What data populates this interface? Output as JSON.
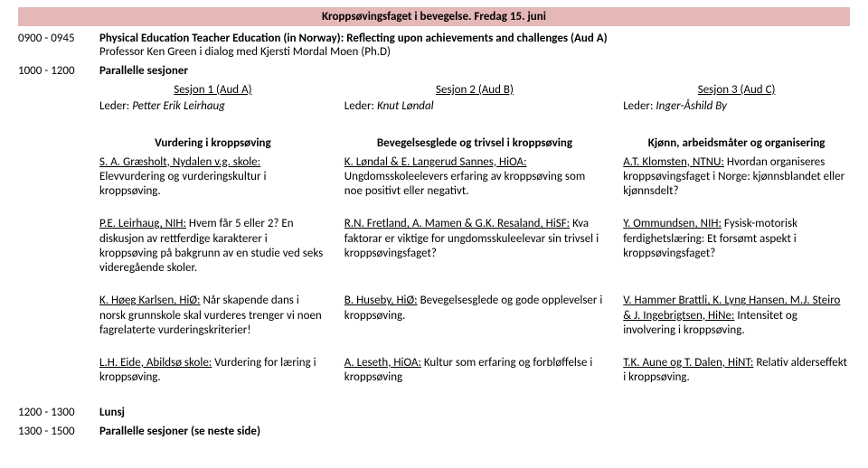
{
  "banner": "Kroppsøvingsfaget i bevegelse. Fredag 15. juni",
  "r1": {
    "time": "0900 - 0945",
    "title": "Physical Education Teacher Education (in Norway): Reflecting upon achievements and challenges (Aud A)",
    "sub": "Professor Ken Green i dialog med Kjersti Mordal Moen (Ph.D)"
  },
  "r2": {
    "time": "1000 - 1200",
    "title": "Parallelle sesjoner"
  },
  "sessions": {
    "s1": {
      "hdr": "Sesjon 1 (Aud A)",
      "leader": "Petter Erik Leirhaug"
    },
    "s2": {
      "hdr": "Sesjon 2 (Aud B)",
      "leader": "Knut Løndal"
    },
    "s3": {
      "hdr": "Sesjon 3 (Aud C)",
      "leader": "Inger-Åshild By"
    },
    "leder_label": "Leder: "
  },
  "themes": {
    "c1": "Vurdering i kroppsøving",
    "c2": "Bevegelsesglede og trivsel i kroppsøving",
    "c3": "Kjønn, arbeidsmåter og organisering"
  },
  "rows": [
    {
      "c1a": "S. A. Græsholt, Nydalen v.g. skole:",
      "c1b": " Elevvurdering og vurderingskultur i kroppsøving.",
      "c2a": "K. Løndal & E. Langerud Sannes, HiOA:",
      "c2b": " Ungdomsskoleelevers erfaring av kroppsøving som noe positivt eller negativt.",
      "c3a": "A.T. Klomsten, NTNU:",
      "c3b": " Hvordan organiseres kroppsøvingsfaget i Norge: kjønnsblandet eller kjønnsdelt?"
    },
    {
      "c1a": "P.E. Leirhaug, NIH:",
      "c1b": " Hvem får 5 eller 2? En diskusjon av rettferdige karakterer i kroppsøving på bakgrunn av en studie ved seks videregående skoler.",
      "c2a": "R.N. Fretland, A. Mamen & G.K. Resaland, HiSF:",
      "c2b": " Kva faktorar er viktige for ungdomsskuleelevar sin trivsel i kroppsøvingsfaget?",
      "c3a": "Y. Ommundsen, NIH:",
      "c3b": " Fysisk-motorisk ferdighetslæring: Et forsømt aspekt i kroppsøvingsfaget?"
    },
    {
      "c1a": "K. Høeg Karlsen, HiØ:",
      "c1b": " Når skapende dans i norsk grunnskole skal vurderes trenger vi noen fagrelaterte vurderingskriterier!",
      "c2a": "B. Huseby, HiØ:",
      "c2b": " Bevegelsesglede og gode opplevelser i kroppsøving.",
      "c3a": "V. Hammer Brattli, K. Lyng Hansen, M.J. Steiro & J. Ingebrigtsen, HiNe:",
      "c3b": " Intensitet og involvering i kroppsøving."
    },
    {
      "c1a": "L.H. Eide, Abildsø skole:",
      "c1b": " Vurdering for læring i kroppsøving.",
      "c2a": "A. Leseth, HiOA:",
      "c2b": " Kultur som erfaring og forbløffelse i kroppsøving",
      "c3a": "T.K. Aune og T. Dalen, HiNT:",
      "c3b": " Relativ alderseffekt i kroppsøving."
    }
  ],
  "r3": {
    "time": "1200 - 1300",
    "title": "Lunsj"
  },
  "r4": {
    "time": "1300 - 1500",
    "title": "Parallelle sesjoner (se neste side)"
  }
}
